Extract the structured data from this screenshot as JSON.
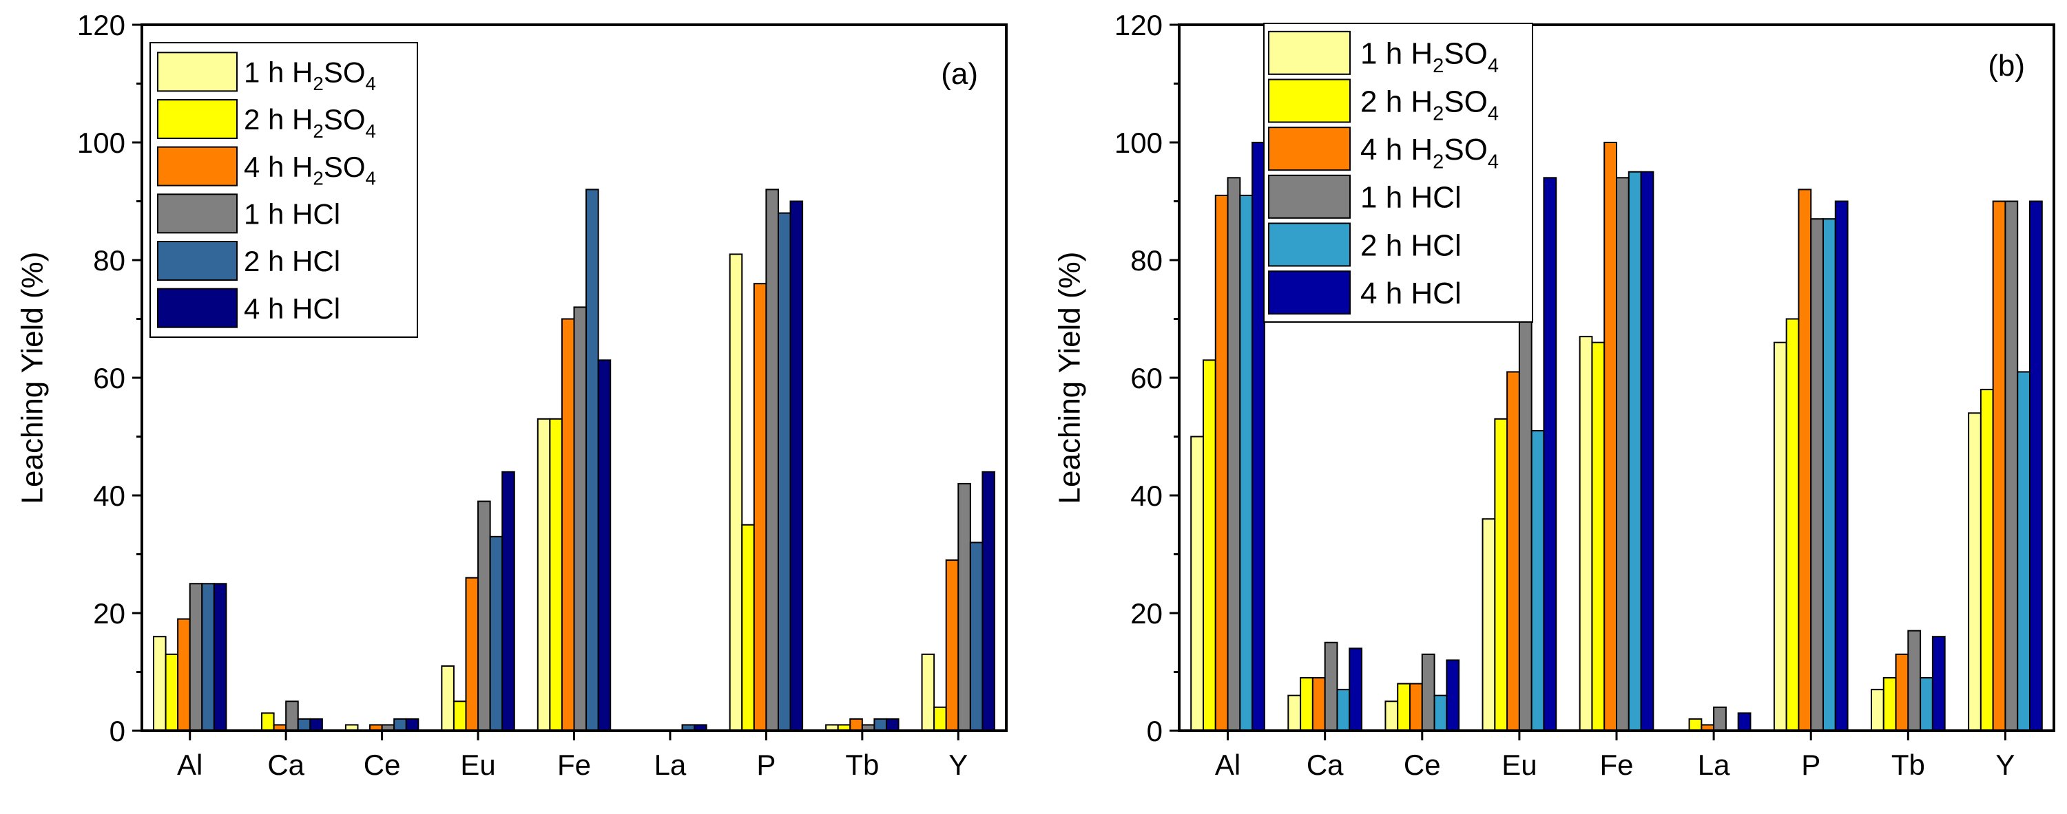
{
  "chart_data": [
    {
      "type": "bar",
      "panel": "(a)",
      "title": "",
      "xlabel": "",
      "ylabel": "Leaching Yield (%)",
      "ylim": [
        0,
        120
      ],
      "yticks": [
        "0",
        "20",
        "40",
        "60",
        "80",
        "100",
        "120"
      ],
      "grid": false,
      "legend_position": "top-left",
      "categories": [
        "Al",
        "Ca",
        "Ce",
        "Eu",
        "Fe",
        "La",
        "P",
        "Tb",
        "Y"
      ],
      "series": [
        {
          "name": "1 h H2SO4",
          "legend": {
            "pre": "1 h H",
            "sub1": "2",
            "mid": "SO",
            "sub2": "4"
          },
          "color": "#FFFF99",
          "values": [
            16,
            0,
            1,
            11,
            53,
            0,
            81,
            1,
            13
          ]
        },
        {
          "name": "2 h H2SO4",
          "legend": {
            "pre": "2 h H",
            "sub1": "2",
            "mid": "SO",
            "sub2": "4"
          },
          "color": "#FFFF00",
          "values": [
            13,
            3,
            0,
            5,
            53,
            0,
            35,
            1,
            4
          ]
        },
        {
          "name": "4 h H2SO4",
          "legend": {
            "pre": "4 h H",
            "sub1": "2",
            "mid": "SO",
            "sub2": "4"
          },
          "color": "#FF8000",
          "values": [
            19,
            1,
            1,
            26,
            70,
            0,
            76,
            2,
            29
          ]
        },
        {
          "name": "1 h HCl",
          "legend": {
            "pre": "1 h HCl",
            "sub1": "",
            "mid": "",
            "sub2": ""
          },
          "color": "#808080",
          "values": [
            25,
            5,
            1,
            39,
            72,
            0,
            92,
            1,
            42
          ]
        },
        {
          "name": "2 h HCl",
          "legend": {
            "pre": "2 h HCl",
            "sub1": "",
            "mid": "",
            "sub2": ""
          },
          "color": "#336699",
          "values": [
            25,
            2,
            2,
            33,
            92,
            1,
            88,
            2,
            32
          ]
        },
        {
          "name": "4 h HCl",
          "legend": {
            "pre": "4 h HCl",
            "sub1": "",
            "mid": "",
            "sub2": ""
          },
          "color": "#000080",
          "values": [
            25,
            2,
            2,
            44,
            63,
            1,
            90,
            2,
            44
          ]
        }
      ]
    },
    {
      "type": "bar",
      "panel": "(b)",
      "title": "",
      "xlabel": "",
      "ylabel": "Leaching Yield (%)",
      "ylim": [
        0,
        120
      ],
      "yticks": [
        "0",
        "20",
        "40",
        "60",
        "80",
        "100",
        "120"
      ],
      "grid": false,
      "legend_position": "top-left",
      "categories": [
        "Al",
        "Ca",
        "Ce",
        "Eu",
        "Fe",
        "La",
        "P",
        "Tb",
        "Y"
      ],
      "series": [
        {
          "name": "1 h H2SO4",
          "legend": {
            "pre": "1 h H",
            "sub1": "2",
            "mid": "SO",
            "sub2": "4"
          },
          "color": "#FFFF99",
          "values": [
            50,
            6,
            5,
            36,
            67,
            0,
            66,
            7,
            54
          ]
        },
        {
          "name": "2 h H2SO4",
          "legend": {
            "pre": "2 h H",
            "sub1": "2",
            "mid": "SO",
            "sub2": "4"
          },
          "color": "#FFFF00",
          "values": [
            63,
            9,
            8,
            53,
            66,
            2,
            70,
            9,
            58
          ]
        },
        {
          "name": "4 h H2SO4",
          "legend": {
            "pre": "4 h H",
            "sub1": "2",
            "mid": "SO",
            "sub2": "4"
          },
          "color": "#FF8000",
          "values": [
            91,
            9,
            8,
            61,
            100,
            1,
            92,
            13,
            90
          ]
        },
        {
          "name": "1 h HCl",
          "legend": {
            "pre": "1 h HCl",
            "sub1": "",
            "mid": "",
            "sub2": ""
          },
          "color": "#808080",
          "values": [
            94,
            15,
            13,
            72,
            94,
            4,
            87,
            17,
            90
          ]
        },
        {
          "name": "2 h HCl",
          "legend": {
            "pre": "2 h HCl",
            "sub1": "",
            "mid": "",
            "sub2": ""
          },
          "color": "#33A0CC",
          "values": [
            91,
            7,
            6,
            51,
            95,
            0,
            87,
            9,
            61
          ]
        },
        {
          "name": "4 h HCl",
          "legend": {
            "pre": "4 h HCl",
            "sub1": "",
            "mid": "",
            "sub2": ""
          },
          "color": "#0000A0",
          "values": [
            100,
            14,
            12,
            94,
            95,
            3,
            90,
            16,
            90
          ]
        }
      ]
    }
  ]
}
